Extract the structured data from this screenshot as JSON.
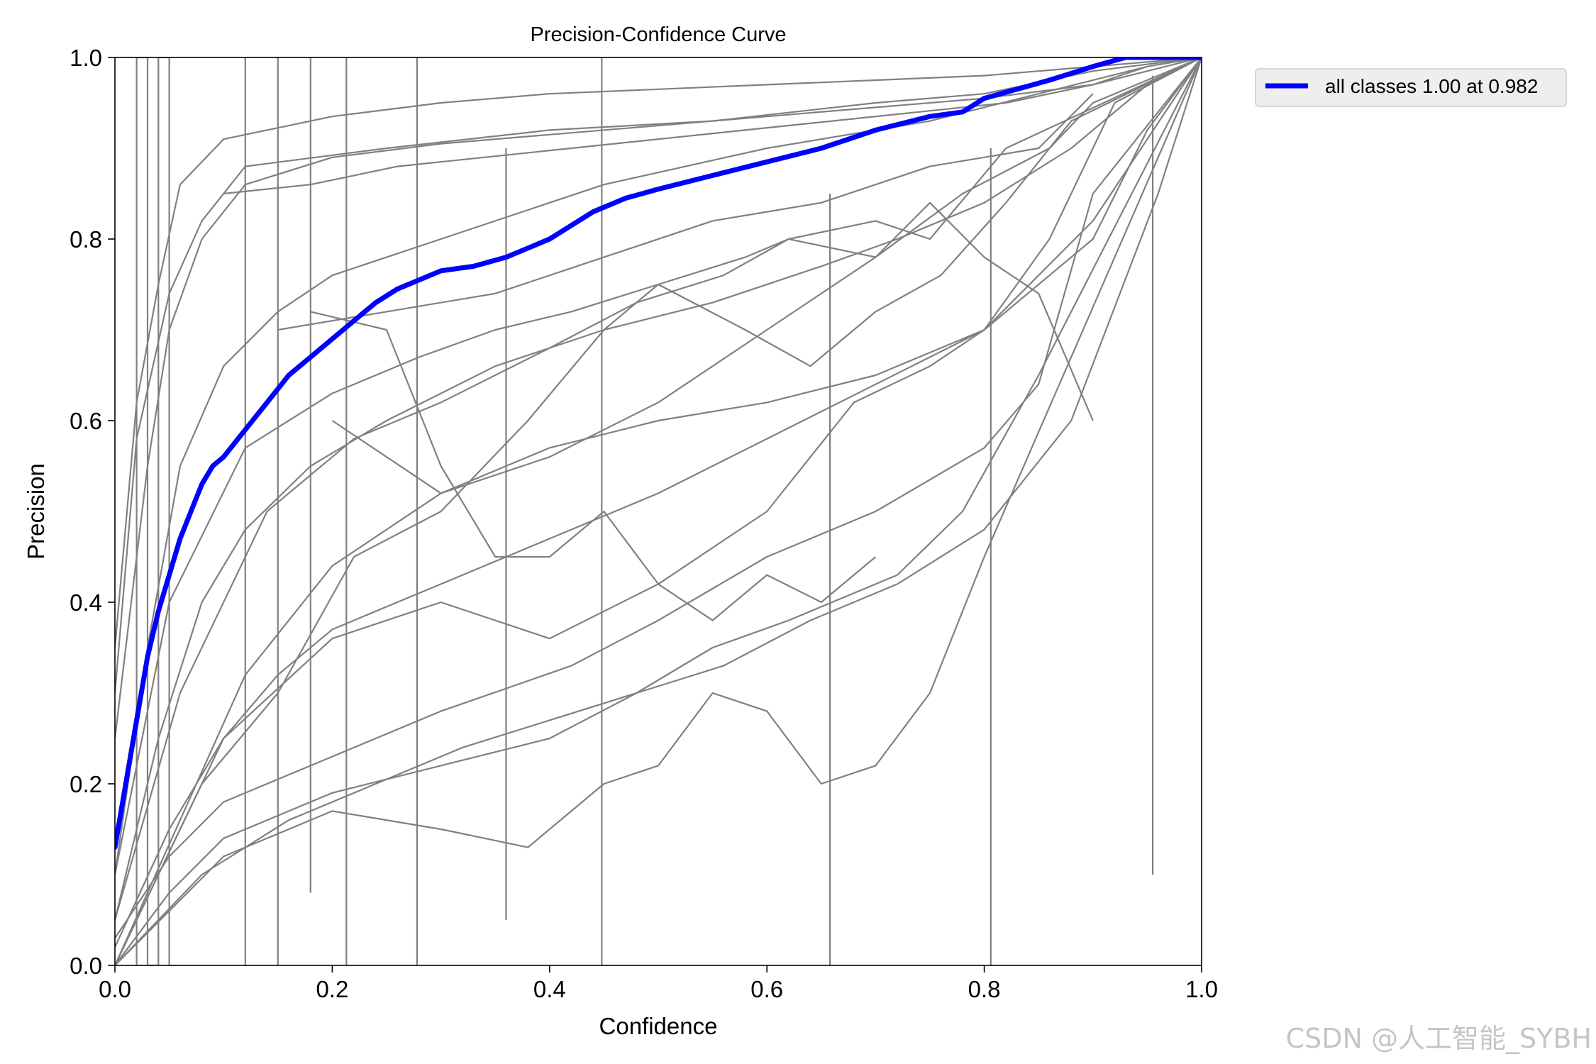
{
  "chart_data": {
    "type": "line",
    "title": "Precision-Confidence Curve",
    "xlabel": "Confidence",
    "ylabel": "Precision",
    "xlim": [
      0.0,
      1.0
    ],
    "ylim": [
      0.0,
      1.0
    ],
    "xticks": [
      "0.0",
      "0.2",
      "0.4",
      "0.6",
      "0.8",
      "1.0"
    ],
    "yticks": [
      "0.0",
      "0.2",
      "0.4",
      "0.6",
      "0.8",
      "1.0"
    ],
    "grid": false,
    "legend_position": "outside-top-right",
    "colors": {
      "summary": "#0000ff",
      "classes": "#808080"
    },
    "series": [
      {
        "name": "all classes 1.00 at 0.982",
        "color": "#0000ff",
        "x": [
          0.0,
          0.01,
          0.02,
          0.03,
          0.04,
          0.05,
          0.06,
          0.07,
          0.08,
          0.09,
          0.1,
          0.12,
          0.14,
          0.16,
          0.18,
          0.2,
          0.22,
          0.24,
          0.26,
          0.28,
          0.3,
          0.33,
          0.36,
          0.38,
          0.4,
          0.42,
          0.44,
          0.47,
          0.5,
          0.55,
          0.6,
          0.65,
          0.7,
          0.75,
          0.78,
          0.8,
          0.83,
          0.86,
          0.9,
          0.93,
          0.96,
          1.0
        ],
        "y": [
          0.13,
          0.2,
          0.27,
          0.34,
          0.39,
          0.43,
          0.47,
          0.5,
          0.53,
          0.55,
          0.56,
          0.59,
          0.62,
          0.65,
          0.67,
          0.69,
          0.71,
          0.73,
          0.745,
          0.755,
          0.765,
          0.77,
          0.78,
          0.79,
          0.8,
          0.815,
          0.83,
          0.845,
          0.855,
          0.87,
          0.885,
          0.9,
          0.92,
          0.935,
          0.94,
          0.955,
          0.965,
          0.975,
          0.99,
          1.0,
          1.0,
          1.0
        ]
      },
      {
        "x": [
          0.0,
          0.02,
          0.04,
          0.06,
          0.1,
          0.2,
          0.3,
          0.4,
          0.5,
          0.6,
          0.7,
          0.8,
          0.9,
          1.0
        ],
        "y": [
          0.35,
          0.62,
          0.75,
          0.86,
          0.91,
          0.935,
          0.95,
          0.96,
          0.965,
          0.97,
          0.975,
          0.98,
          0.99,
          1.0
        ]
      },
      {
        "x": [
          0.0,
          0.03,
          0.05,
          0.08,
          0.12,
          0.2,
          0.3,
          0.4,
          0.5,
          0.6,
          0.7,
          0.8,
          0.9,
          1.0
        ],
        "y": [
          0.25,
          0.55,
          0.7,
          0.8,
          0.86,
          0.89,
          0.905,
          0.915,
          0.925,
          0.935,
          0.945,
          0.955,
          0.97,
          1.0
        ]
      },
      {
        "x": [
          0.0,
          0.02,
          0.05,
          0.08,
          0.12,
          0.25,
          0.4,
          0.55,
          0.7,
          0.8,
          0.9,
          1.0
        ],
        "y": [
          0.3,
          0.58,
          0.74,
          0.82,
          0.88,
          0.9,
          0.92,
          0.93,
          0.95,
          0.96,
          0.985,
          1.0
        ]
      },
      {
        "x": [
          0.0,
          0.03,
          0.06,
          0.1,
          0.15,
          0.2,
          0.3,
          0.45,
          0.6,
          0.75,
          0.85,
          0.95,
          1.0
        ],
        "y": [
          0.1,
          0.35,
          0.55,
          0.66,
          0.72,
          0.76,
          0.8,
          0.86,
          0.9,
          0.93,
          0.96,
          0.99,
          1.0
        ]
      },
      {
        "x": [
          0.0,
          0.04,
          0.08,
          0.12,
          0.18,
          0.25,
          0.35,
          0.45,
          0.55,
          0.65,
          0.72,
          0.8,
          0.88,
          0.95,
          1.0
        ],
        "y": [
          0.05,
          0.25,
          0.4,
          0.48,
          0.55,
          0.6,
          0.66,
          0.7,
          0.73,
          0.77,
          0.8,
          0.84,
          0.9,
          0.97,
          1.0
        ]
      },
      {
        "x": [
          0.0,
          0.05,
          0.1,
          0.15,
          0.2,
          0.3,
          0.4,
          0.5,
          0.6,
          0.7,
          0.8,
          0.9,
          0.95,
          1.0
        ],
        "y": [
          0.02,
          0.15,
          0.25,
          0.32,
          0.37,
          0.42,
          0.47,
          0.52,
          0.58,
          0.64,
          0.7,
          0.8,
          0.92,
          1.0
        ]
      },
      {
        "x": [
          0.0,
          0.05,
          0.1,
          0.2,
          0.3,
          0.42,
          0.5,
          0.6,
          0.7,
          0.8,
          0.85,
          0.9,
          1.0
        ],
        "y": [
          0.03,
          0.12,
          0.18,
          0.23,
          0.28,
          0.33,
          0.38,
          0.45,
          0.5,
          0.57,
          0.64,
          0.85,
          1.0
        ]
      },
      {
        "x": [
          0.0,
          0.05,
          0.1,
          0.2,
          0.3,
          0.4,
          0.48,
          0.55,
          0.62,
          0.72,
          0.78,
          0.85,
          1.0
        ],
        "y": [
          0.0,
          0.08,
          0.14,
          0.19,
          0.22,
          0.25,
          0.3,
          0.35,
          0.38,
          0.43,
          0.5,
          0.65,
          1.0
        ]
      },
      {
        "x": [
          0.0,
          0.1,
          0.2,
          0.3,
          0.38,
          0.45,
          0.5,
          0.55,
          0.6,
          0.65,
          0.7,
          0.75,
          0.8,
          1.0
        ],
        "y": [
          0.0,
          0.12,
          0.17,
          0.15,
          0.13,
          0.2,
          0.22,
          0.3,
          0.28,
          0.2,
          0.22,
          0.3,
          0.45,
          1.0
        ]
      },
      {
        "x": [
          0.0,
          0.08,
          0.15,
          0.22,
          0.3,
          0.38,
          0.45,
          0.5,
          0.58,
          0.62,
          0.7,
          0.75,
          0.82,
          1.0
        ],
        "y": [
          0.0,
          0.2,
          0.3,
          0.45,
          0.5,
          0.6,
          0.7,
          0.75,
          0.78,
          0.8,
          0.82,
          0.8,
          0.9,
          1.0
        ]
      },
      {
        "x": [
          0.0,
          0.12,
          0.2,
          0.3,
          0.4,
          0.5,
          0.6,
          0.7,
          0.8,
          0.9,
          1.0
        ],
        "y": [
          0.0,
          0.32,
          0.44,
          0.52,
          0.57,
          0.6,
          0.62,
          0.65,
          0.7,
          0.82,
          1.0
        ]
      },
      {
        "x": [
          0.0,
          0.05,
          0.12,
          0.2,
          0.28,
          0.35,
          0.42,
          0.5,
          0.58,
          0.64,
          0.7,
          0.76,
          0.82,
          0.88,
          1.0
        ],
        "y": [
          0.1,
          0.4,
          0.57,
          0.63,
          0.67,
          0.7,
          0.72,
          0.75,
          0.7,
          0.66,
          0.72,
          0.76,
          0.84,
          0.93,
          1.0
        ]
      },
      {
        "x": [
          0.0,
          0.06,
          0.14,
          0.22,
          0.3,
          0.4,
          0.48,
          0.56,
          0.62,
          0.7,
          0.78,
          0.86,
          0.9,
          1.0
        ],
        "y": [
          0.05,
          0.3,
          0.5,
          0.58,
          0.62,
          0.68,
          0.73,
          0.76,
          0.8,
          0.78,
          0.85,
          0.9,
          0.95,
          1.0
        ]
      },
      {
        "x": [
          0.0,
          0.1,
          0.2,
          0.3,
          0.4,
          0.5,
          0.6,
          0.68,
          0.75,
          0.8,
          0.86,
          0.92,
          1.0
        ],
        "y": [
          0.0,
          0.25,
          0.36,
          0.4,
          0.36,
          0.42,
          0.5,
          0.62,
          0.66,
          0.7,
          0.8,
          0.95,
          1.0
        ]
      },
      {
        "x": [
          0.18,
          0.25,
          0.3,
          0.35,
          0.4,
          0.45,
          0.5,
          0.55,
          0.6,
          0.65,
          0.7
        ],
        "y": [
          0.72,
          0.7,
          0.55,
          0.45,
          0.45,
          0.5,
          0.42,
          0.38,
          0.43,
          0.4,
          0.45
        ]
      },
      {
        "x": [
          0.2,
          0.3,
          0.4,
          0.5,
          0.6,
          0.7,
          0.75,
          0.8,
          0.85,
          0.9
        ],
        "y": [
          0.6,
          0.52,
          0.56,
          0.62,
          0.7,
          0.78,
          0.84,
          0.78,
          0.74,
          0.6
        ]
      },
      {
        "x": [
          0.15,
          0.25,
          0.35,
          0.45,
          0.55,
          0.65,
          0.75,
          0.85,
          0.9
        ],
        "y": [
          0.7,
          0.72,
          0.74,
          0.78,
          0.82,
          0.84,
          0.88,
          0.9,
          0.96
        ]
      },
      {
        "x": [
          0.1,
          0.18,
          0.26,
          0.34,
          0.42,
          0.5,
          0.58,
          0.66,
          0.74,
          0.82,
          0.9,
          0.95
        ],
        "y": [
          0.85,
          0.86,
          0.88,
          0.89,
          0.9,
          0.91,
          0.92,
          0.93,
          0.94,
          0.95,
          0.97,
          0.99
        ]
      },
      {
        "x": [
          0.0,
          0.08,
          0.16,
          0.24,
          0.32,
          0.4,
          0.48,
          0.56,
          0.64,
          0.72,
          0.8,
          0.88,
          0.96,
          1.0
        ],
        "y": [
          0.0,
          0.1,
          0.16,
          0.2,
          0.24,
          0.27,
          0.3,
          0.33,
          0.38,
          0.42,
          0.48,
          0.6,
          0.85,
          1.0
        ]
      },
      {
        "x": [
          0.02,
          0.02,
          0.03,
          0.03,
          0.04,
          0.04,
          0.05,
          0.05
        ],
        "y": [
          0.0,
          1.0,
          1.0,
          0.0,
          0.0,
          1.0,
          1.0,
          0.0
        ]
      },
      {
        "x": [
          0.12,
          0.12
        ],
        "y": [
          0.0,
          1.0
        ]
      },
      {
        "x": [
          0.15,
          0.15
        ],
        "y": [
          0.0,
          1.0
        ]
      },
      {
        "x": [
          0.18,
          0.18
        ],
        "y": [
          0.08,
          1.0
        ]
      },
      {
        "x": [
          0.213,
          0.213
        ],
        "y": [
          0.0,
          1.0
        ]
      },
      {
        "x": [
          0.278,
          0.278
        ],
        "y": [
          0.0,
          1.0
        ]
      },
      {
        "x": [
          0.36,
          0.36
        ],
        "y": [
          0.05,
          0.9
        ]
      },
      {
        "x": [
          0.448,
          0.448
        ],
        "y": [
          0.0,
          1.0
        ]
      },
      {
        "x": [
          0.658,
          0.658
        ],
        "y": [
          0.0,
          0.85
        ]
      },
      {
        "x": [
          0.806,
          0.806
        ],
        "y": [
          0.0,
          0.9
        ]
      },
      {
        "x": [
          0.955,
          0.955
        ],
        "y": [
          0.1,
          0.98
        ]
      }
    ]
  },
  "watermark": "CSDN @人工智能_SYBH"
}
